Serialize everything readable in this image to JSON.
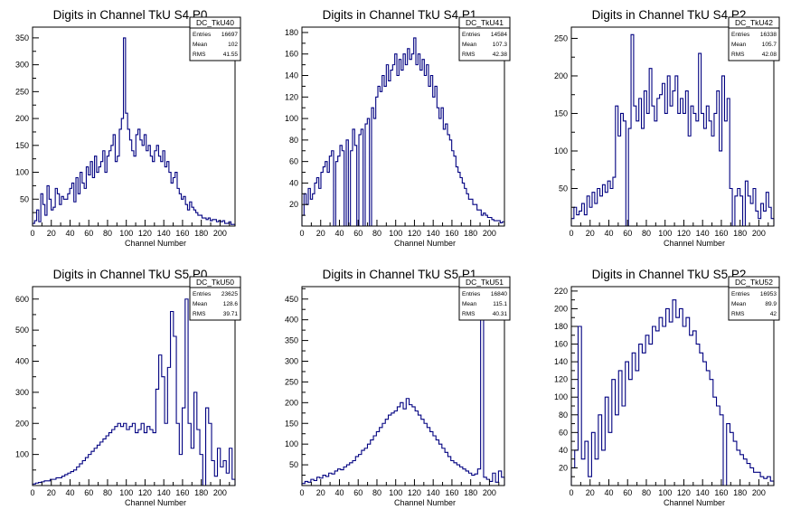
{
  "chart_data": [
    {
      "type": "histogram",
      "title": "Digits in Channel TkU S4 P0",
      "xlabel": "Channel Number",
      "ylabel": "",
      "xlim": [
        0,
        216
      ],
      "ylim": [
        0,
        370
      ],
      "xticks": [
        0,
        20,
        40,
        60,
        80,
        100,
        120,
        140,
        160,
        180,
        200
      ],
      "yticks": [
        50,
        100,
        150,
        200,
        250,
        300,
        350
      ],
      "line_color": "#000080",
      "stats": {
        "name": "DC_TkU40",
        "rows": [
          {
            "label": "Entries",
            "value": "16697"
          },
          {
            "label": "Mean",
            "value": "102"
          },
          {
            "label": "RMS",
            "value": "41.55"
          }
        ]
      },
      "series": [
        {
          "values": [
            5,
            10,
            30,
            8,
            60,
            40,
            20,
            75,
            50,
            30,
            35,
            70,
            60,
            40,
            55,
            50,
            50,
            60,
            70,
            80,
            45,
            90,
            60,
            100,
            80,
            70,
            110,
            95,
            120,
            90,
            130,
            100,
            110,
            120,
            140,
            100,
            130,
            140,
            150,
            170,
            120,
            130,
            180,
            200,
            350,
            210,
            180,
            160,
            140,
            130,
            170,
            180,
            160,
            150,
            170,
            140,
            150,
            130,
            120,
            140,
            150,
            130,
            120,
            140,
            110,
            120,
            100,
            80,
            90,
            100,
            70,
            60,
            50,
            55,
            40,
            30,
            45,
            35,
            30,
            25,
            20,
            20,
            15,
            15,
            12,
            15,
            10,
            12,
            12,
            8,
            10,
            8,
            10,
            5,
            5,
            8,
            3,
            3
          ]
        }
      ]
    },
    {
      "type": "histogram",
      "title": "Digits in Channel TkU S4 P1",
      "xlabel": "Channel Number",
      "ylabel": "",
      "xlim": [
        0,
        216
      ],
      "ylim": [
        0,
        185
      ],
      "xticks": [
        0,
        20,
        40,
        60,
        80,
        100,
        120,
        140,
        160,
        180,
        200
      ],
      "yticks": [
        20,
        40,
        60,
        80,
        100,
        120,
        140,
        160,
        180
      ],
      "line_color": "#000080",
      "stats": {
        "name": "DC_TkU41",
        "rows": [
          {
            "label": "Entries",
            "value": "14584"
          },
          {
            "label": "Mean",
            "value": "107.3"
          },
          {
            "label": "RMS",
            "value": "42.38"
          }
        ]
      },
      "series": [
        {
          "values": [
            10,
            30,
            20,
            35,
            25,
            30,
            40,
            45,
            35,
            50,
            55,
            60,
            50,
            65,
            70,
            0,
            60,
            65,
            75,
            70,
            0,
            80,
            0,
            70,
            90,
            75,
            0,
            85,
            90,
            0,
            95,
            100,
            0,
            110,
            100,
            120,
            130,
            125,
            140,
            130,
            150,
            135,
            145,
            150,
            160,
            140,
            155,
            145,
            160,
            150,
            165,
            155,
            160,
            175,
            150,
            160,
            145,
            155,
            140,
            150,
            130,
            140,
            120,
            130,
            110,
            100,
            110,
            90,
            95,
            85,
            80,
            70,
            65,
            55,
            50,
            45,
            40,
            35,
            30,
            25,
            25,
            20,
            20,
            15,
            15,
            10,
            12,
            10,
            8,
            8,
            6,
            5,
            5,
            5,
            3,
            4
          ]
        }
      ]
    },
    {
      "type": "histogram",
      "title": "Digits in Channel TkU S4 P2",
      "xlabel": "Channel Number",
      "ylabel": "",
      "xlim": [
        0,
        216
      ],
      "ylim": [
        0,
        265
      ],
      "xticks": [
        0,
        20,
        40,
        60,
        80,
        100,
        120,
        140,
        160,
        180,
        200
      ],
      "yticks": [
        50,
        100,
        150,
        200,
        250
      ],
      "line_color": "#000080",
      "stats": {
        "name": "DC_TkU42",
        "rows": [
          {
            "label": "Entries",
            "value": "16338"
          },
          {
            "label": "Mean",
            "value": "105.7"
          },
          {
            "label": "RMS",
            "value": "42.08"
          }
        ]
      },
      "series": [
        {
          "values": [
            10,
            25,
            15,
            20,
            30,
            15,
            40,
            25,
            45,
            30,
            50,
            40,
            55,
            45,
            60,
            50,
            65,
            160,
            120,
            150,
            140,
            0,
            130,
            255,
            160,
            140,
            170,
            130,
            180,
            150,
            210,
            160,
            140,
            170,
            175,
            190,
            150,
            200,
            160,
            180,
            200,
            150,
            170,
            150,
            180,
            120,
            160,
            150,
            140,
            230,
            150,
            130,
            160,
            140,
            120,
            150,
            180,
            100,
            200,
            140,
            170,
            50,
            0,
            40,
            50,
            40,
            0,
            60,
            40,
            30,
            50,
            20,
            10,
            30,
            20,
            45,
            25,
            10
          ]
        }
      ]
    },
    {
      "type": "histogram",
      "title": "Digits in Channel TkU S5 P0",
      "xlabel": "Channel Number",
      "ylabel": "",
      "xlim": [
        0,
        216
      ],
      "ylim": [
        0,
        640
      ],
      "xticks": [
        0,
        20,
        40,
        60,
        80,
        100,
        120,
        140,
        160,
        180,
        200
      ],
      "yticks": [
        100,
        200,
        300,
        400,
        500,
        600
      ],
      "line_color": "#000080",
      "stats": {
        "name": "DC_TkU50",
        "rows": [
          {
            "label": "Entries",
            "value": "23625"
          },
          {
            "label": "Mean",
            "value": "128.6"
          },
          {
            "label": "RMS",
            "value": "39.71"
          }
        ]
      },
      "series": [
        {
          "values": [
            5,
            8,
            10,
            12,
            15,
            15,
            20,
            20,
            25,
            25,
            30,
            35,
            40,
            45,
            50,
            60,
            70,
            80,
            90,
            100,
            110,
            120,
            130,
            140,
            150,
            160,
            170,
            180,
            190,
            200,
            190,
            200,
            180,
            190,
            200,
            170,
            180,
            200,
            170,
            190,
            180,
            170,
            310,
            420,
            350,
            200,
            380,
            560,
            480,
            200,
            100,
            250,
            600,
            200,
            120,
            300,
            180,
            100,
            0,
            250,
            200,
            80,
            30,
            120,
            60,
            80,
            40,
            120,
            20
          ]
        }
      ]
    },
    {
      "type": "histogram",
      "title": "Digits in Channel TkU S5 P1",
      "xlabel": "Channel Number",
      "ylabel": "",
      "xlim": [
        0,
        216
      ],
      "ylim": [
        0,
        480
      ],
      "xticks": [
        0,
        20,
        40,
        60,
        80,
        100,
        120,
        140,
        160,
        180,
        200
      ],
      "yticks": [
        50,
        100,
        150,
        200,
        250,
        300,
        350,
        400,
        450
      ],
      "line_color": "#000080",
      "stats": {
        "name": "DC_TkU51",
        "rows": [
          {
            "label": "Entries",
            "value": "16840"
          },
          {
            "label": "Mean",
            "value": "115.1"
          },
          {
            "label": "RMS",
            "value": "40.31"
          }
        ]
      },
      "series": [
        {
          "values": [
            5,
            10,
            8,
            15,
            12,
            20,
            18,
            25,
            22,
            30,
            28,
            35,
            40,
            38,
            45,
            50,
            55,
            60,
            70,
            75,
            85,
            90,
            100,
            110,
            120,
            130,
            140,
            150,
            160,
            170,
            175,
            180,
            190,
            200,
            185,
            210,
            195,
            190,
            180,
            170,
            160,
            150,
            140,
            130,
            120,
            110,
            100,
            90,
            80,
            70,
            60,
            55,
            50,
            45,
            40,
            35,
            30,
            25,
            28,
            40,
            470,
            20,
            15,
            10,
            30,
            8,
            35,
            20
          ]
        }
      ]
    },
    {
      "type": "histogram",
      "title": "Digits in Channel TkU S5 P2",
      "xlabel": "Channel Number",
      "ylabel": "",
      "xlim": [
        0,
        216
      ],
      "ylim": [
        0,
        225
      ],
      "xticks": [
        0,
        20,
        40,
        60,
        80,
        100,
        120,
        140,
        160,
        180,
        200
      ],
      "yticks": [
        20,
        40,
        60,
        80,
        100,
        120,
        140,
        160,
        180,
        200,
        220
      ],
      "line_color": "#000080",
      "stats": {
        "name": "DC_TkU52",
        "rows": [
          {
            "label": "Entries",
            "value": "16953"
          },
          {
            "label": "Mean",
            "value": "89.9"
          },
          {
            "label": "RMS",
            "value": "42"
          }
        ]
      },
      "series": [
        {
          "values": [
            20,
            40,
            180,
            30,
            50,
            10,
            60,
            30,
            80,
            40,
            100,
            60,
            120,
            80,
            130,
            90,
            140,
            120,
            150,
            130,
            160,
            150,
            170,
            160,
            180,
            175,
            190,
            180,
            200,
            185,
            210,
            190,
            200,
            180,
            190,
            170,
            175,
            160,
            150,
            140,
            130,
            120,
            100,
            90,
            80,
            0,
            70,
            60,
            50,
            40,
            35,
            30,
            25,
            20,
            15,
            15,
            10,
            8,
            10,
            5
          ]
        }
      ]
    }
  ]
}
